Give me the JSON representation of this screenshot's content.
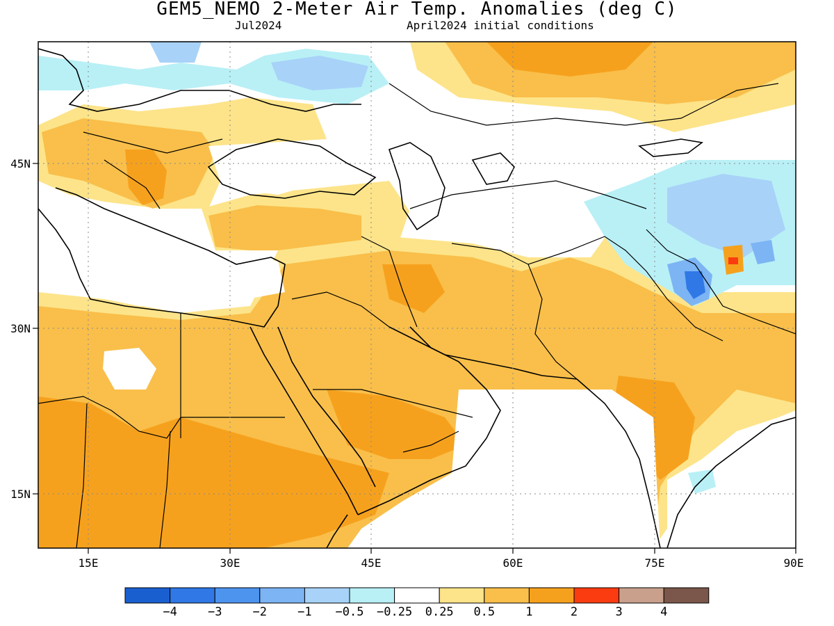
{
  "title": "GEM5_NEMO 2-Meter Air Temp. Anomalies (deg C)",
  "subtitle_left": "Jul2024",
  "subtitle_right": "April2024 initial conditions",
  "lon_ticks": [
    {
      "value": 15,
      "label": "15E"
    },
    {
      "value": 30,
      "label": "30E"
    },
    {
      "value": 45,
      "label": "45E"
    },
    {
      "value": 60,
      "label": "60E"
    },
    {
      "value": 75,
      "label": "75E"
    },
    {
      "value": 90,
      "label": "90E"
    }
  ],
  "lat_ticks": [
    {
      "value": 15,
      "label": "15N"
    },
    {
      "value": 30,
      "label": "30N"
    },
    {
      "value": 45,
      "label": "45N"
    }
  ],
  "extent": {
    "lon_min": 10,
    "lon_max": 90,
    "lat_min": 10,
    "lat_max": 56
  },
  "colorbar": {
    "colors": [
      "#1a5fd0",
      "#2f78e6",
      "#4d94ee",
      "#7cb4f4",
      "#a8d2f8",
      "#b8f0f6",
      "#ffffff",
      "#fde48a",
      "#f9bf4a",
      "#f6a11d",
      "#fb3c10",
      "#c8a08c",
      "#7a574a"
    ],
    "labels": [
      "−4",
      "−3",
      "−2",
      "−1",
      "−0.5",
      "−0.25",
      "0.25",
      "0.5",
      "1",
      "2",
      "3",
      "4"
    ]
  },
  "legend_colors": {
    "light_orange": "#fde48a",
    "orange": "#f9bf4a",
    "dark_orange": "#f6a11d",
    "red": "#fb3c10",
    "light_blue": "#b8f0f6",
    "blue": "#a8d2f8",
    "mid_blue": "#7cb4f4",
    "deep_blue": "#2f78e6"
  }
}
